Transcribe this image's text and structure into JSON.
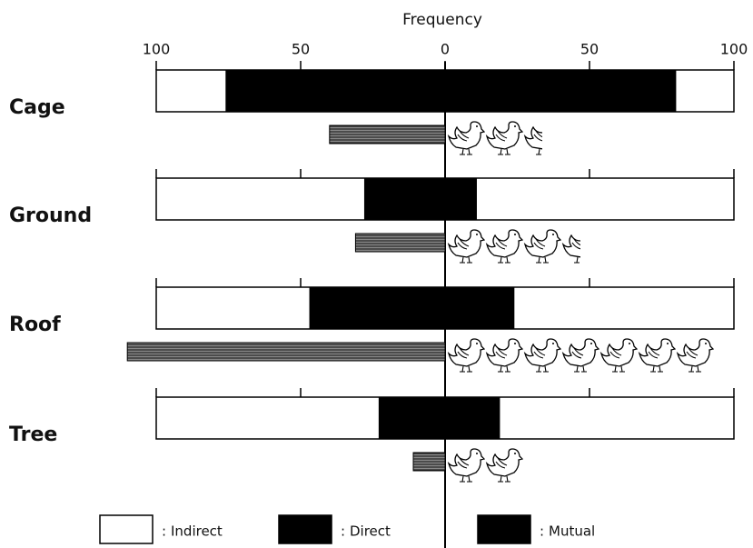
{
  "chart_data": {
    "type": "butterfly",
    "x_label": "Frequency",
    "xlim": [
      -100,
      100
    ],
    "xticks": [
      {
        "value": -100,
        "label": "100"
      },
      {
        "value": -50,
        "label": "50"
      },
      0,
      50,
      100
    ],
    "categories": [
      "Cage",
      "Ground",
      "Roof",
      "Tree"
    ],
    "series": [
      {
        "name": "Indirect",
        "color": "#ffffff"
      },
      {
        "name": "Direct",
        "color": "#000000",
        "left": [
          76,
          28,
          47,
          23
        ],
        "right": [
          80,
          11,
          24,
          19
        ]
      },
      {
        "name": "Mutual",
        "color": "#000000",
        "values": [
          40,
          31,
          110,
          11
        ],
        "icons": [
          2.5,
          3.5,
          7,
          2
        ]
      }
    ]
  }
}
